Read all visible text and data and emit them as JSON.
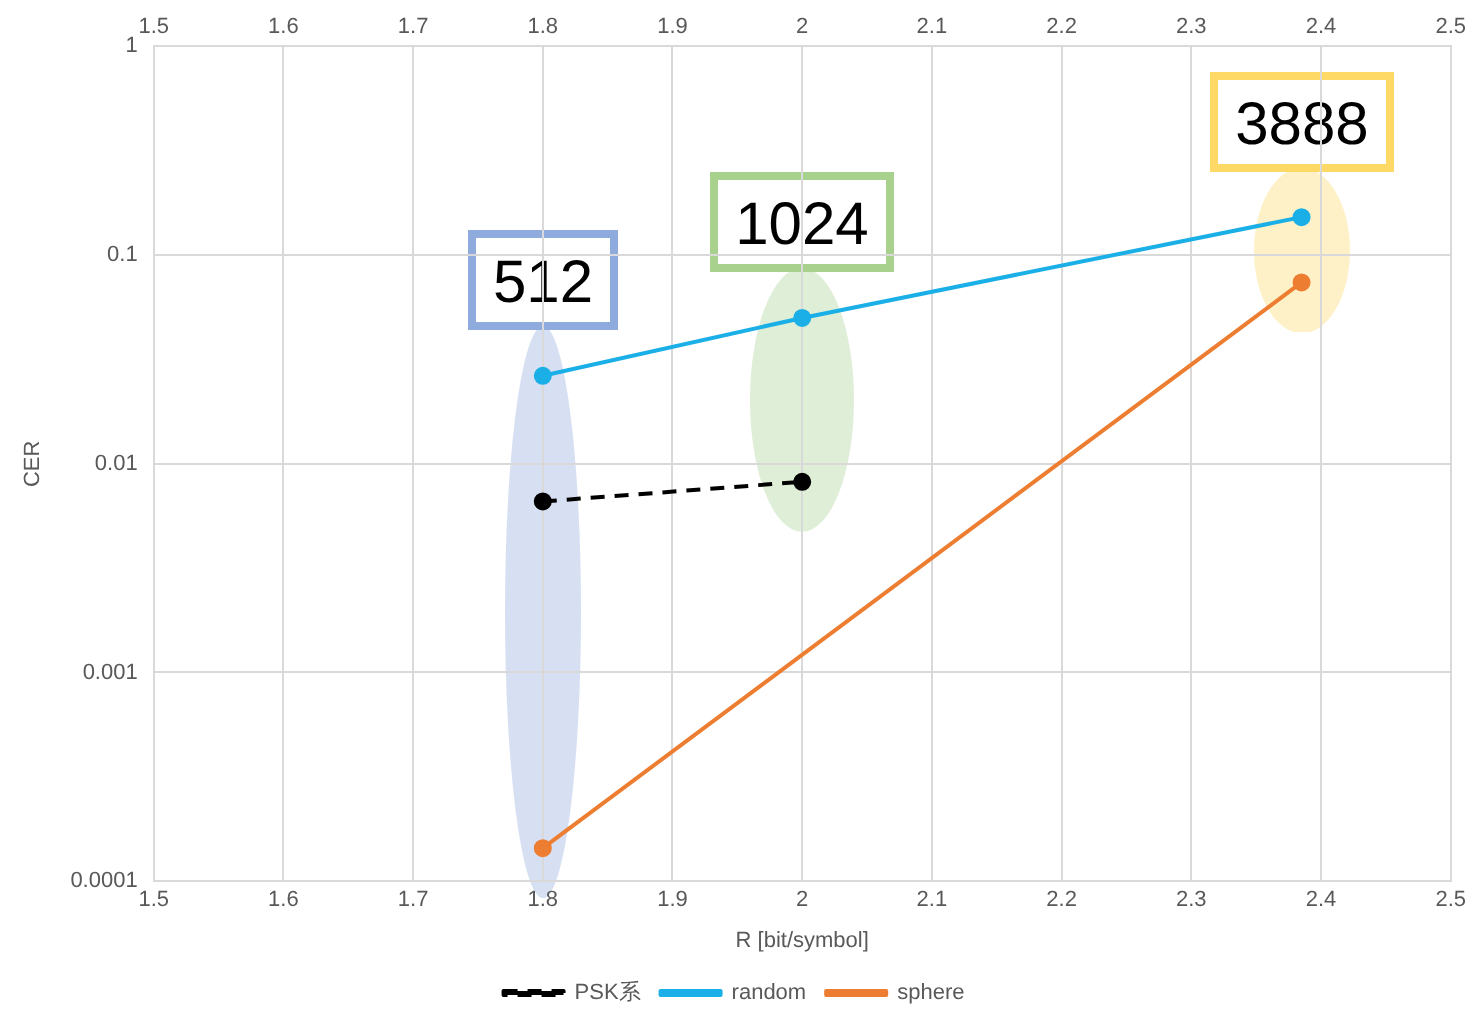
{
  "chart_data": {
    "type": "line",
    "xlabel": "R [bit/symbol]",
    "ylabel": "CER",
    "series": [
      {
        "name": "PSK系",
        "color": "#000000",
        "line_style": "dashed",
        "x": [
          1.8,
          2.0
        ],
        "values": [
          0.0066,
          0.0082
        ]
      },
      {
        "name": "random",
        "color": "#1aafe6",
        "x": [
          1.8,
          2.0,
          2.385
        ],
        "values": [
          0.0264,
          0.05,
          0.152
        ]
      },
      {
        "name": "sphere",
        "color": "#ed7d31",
        "x": [
          1.8,
          2.385
        ],
        "values": [
          0.000144,
          0.074
        ]
      }
    ],
    "xlim": [
      1.5,
      2.5
    ],
    "xticks": [
      1.5,
      1.6,
      1.7,
      1.8,
      1.9,
      2,
      2.1,
      2.2,
      2.3,
      2.4,
      2.5
    ],
    "x2lim": [
      1.5,
      2.5
    ],
    "x2ticks": [
      1.5,
      1.6,
      1.7,
      1.8,
      1.9,
      2,
      2.1,
      2.2,
      2.3,
      2.4,
      2.5
    ],
    "ylim": [
      0.0001,
      1
    ],
    "yticks": [
      0.0001,
      0.001,
      0.01,
      0.1,
      1
    ],
    "log": "y",
    "grid": true,
    "legend": "bottom",
    "marker": "circle",
    "annotations": [
      "512",
      "1024",
      "3888"
    ]
  }
}
